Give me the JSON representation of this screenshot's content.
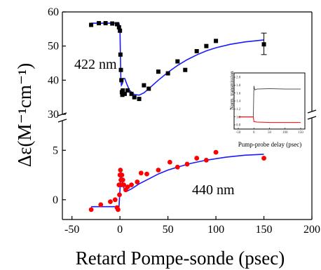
{
  "chart_data": {
    "type": "scatter",
    "title": "",
    "xlabel": "Retard Pompe-sonde (psec)",
    "ylabel": "Δε(M⁻¹cm⁻¹)",
    "xlim": [
      -60,
      200
    ],
    "x_ticks": [
      "-50",
      "0",
      "50",
      "100",
      "150",
      "200"
    ],
    "broken_y_axis": true,
    "upper_panel": {
      "ylim": [
        30,
        60
      ],
      "y_ticks": [
        "30",
        "40",
        "50",
        "60"
      ],
      "annotation": "422 nm",
      "marker": "square",
      "color": "#000000",
      "fit_color": "#1a1aff",
      "points": [
        {
          "x": -30,
          "y": 56.2
        },
        {
          "x": -22,
          "y": 56.7
        },
        {
          "x": -15,
          "y": 56.7
        },
        {
          "x": -8,
          "y": 56.6
        },
        {
          "x": -3,
          "y": 56.4
        },
        {
          "x": -1,
          "y": 55.5
        },
        {
          "x": 0,
          "y": 54.5
        },
        {
          "x": 0.5,
          "y": 47.5
        },
        {
          "x": 1,
          "y": 43.0
        },
        {
          "x": 1.5,
          "y": 40.0
        },
        {
          "x": 2,
          "y": 36.5
        },
        {
          "x": 2.5,
          "y": 35.7
        },
        {
          "x": 3,
          "y": 37.0
        },
        {
          "x": 5,
          "y": 36.0
        },
        {
          "x": 8,
          "y": 37.0
        },
        {
          "x": 12,
          "y": 36.0
        },
        {
          "x": 15,
          "y": 35.0
        },
        {
          "x": 20,
          "y": 34.5
        },
        {
          "x": 25,
          "y": 38.5
        },
        {
          "x": 30,
          "y": 37.5
        },
        {
          "x": 40,
          "y": 42.5
        },
        {
          "x": 50,
          "y": 42.0
        },
        {
          "x": 60,
          "y": 45.5
        },
        {
          "x": 68,
          "y": 43.0
        },
        {
          "x": 80,
          "y": 48.5
        },
        {
          "x": 90,
          "y": 50.0
        },
        {
          "x": 100,
          "y": 51.5
        },
        {
          "x": 150,
          "y": 50.5
        }
      ],
      "error_bar": {
        "x": 150,
        "y": 50.5,
        "low": 47.5,
        "high": 53.8
      },
      "fit": [
        {
          "x": -30,
          "y": 56.7
        },
        {
          "x": -1,
          "y": 56.7
        },
        {
          "x": 0,
          "y": 55.0
        },
        {
          "x": 0.5,
          "y": 47.0
        },
        {
          "x": 1,
          "y": 40.0
        },
        {
          "x": 1.5,
          "y": 38.5
        },
        {
          "x": 2.5,
          "y": 39.0
        },
        {
          "x": 3.5,
          "y": 40.5
        },
        {
          "x": 5,
          "y": 40.5
        },
        {
          "x": 7,
          "y": 39.0
        },
        {
          "x": 10,
          "y": 37.0
        },
        {
          "x": 15,
          "y": 35.8
        },
        {
          "x": 20,
          "y": 35.6
        },
        {
          "x": 25,
          "y": 36.3
        },
        {
          "x": 30,
          "y": 37.5
        },
        {
          "x": 40,
          "y": 40.0
        },
        {
          "x": 50,
          "y": 42.3
        },
        {
          "x": 60,
          "y": 44.3
        },
        {
          "x": 70,
          "y": 46.0
        },
        {
          "x": 80,
          "y": 47.4
        },
        {
          "x": 90,
          "y": 48.6
        },
        {
          "x": 100,
          "y": 49.5
        },
        {
          "x": 115,
          "y": 50.5
        },
        {
          "x": 130,
          "y": 51.2
        },
        {
          "x": 150,
          "y": 51.8
        }
      ]
    },
    "lower_panel": {
      "ylim": [
        -2,
        8
      ],
      "y_ticks": [
        "0",
        "5"
      ],
      "annotation": "440 nm",
      "marker": "circle",
      "color": "#ff0000",
      "fit_color": "#1a1aff",
      "points": [
        {
          "x": -30,
          "y": -1.0
        },
        {
          "x": -20,
          "y": -0.5
        },
        {
          "x": -10,
          "y": -0.2
        },
        {
          "x": -5,
          "y": 0.0
        },
        {
          "x": -3,
          "y": -0.8
        },
        {
          "x": -2,
          "y": -1.0
        },
        {
          "x": -1,
          "y": 1.5
        },
        {
          "x": -0.5,
          "y": 0.5
        },
        {
          "x": 0,
          "y": 2.5
        },
        {
          "x": 0.5,
          "y": 3.0
        },
        {
          "x": 1,
          "y": 2.0
        },
        {
          "x": 1.5,
          "y": 1.5
        },
        {
          "x": 2,
          "y": 2.5
        },
        {
          "x": 3,
          "y": 2.0
        },
        {
          "x": 4,
          "y": 1.5
        },
        {
          "x": 6,
          "y": 1.0
        },
        {
          "x": 8,
          "y": 1.3
        },
        {
          "x": 12,
          "y": 1.5
        },
        {
          "x": 18,
          "y": 1.8
        },
        {
          "x": 22,
          "y": 2.7
        },
        {
          "x": 28,
          "y": 2.6
        },
        {
          "x": 40,
          "y": 3.0
        },
        {
          "x": 52,
          "y": 3.8
        },
        {
          "x": 60,
          "y": 3.3
        },
        {
          "x": 70,
          "y": 3.6
        },
        {
          "x": 80,
          "y": 4.2
        },
        {
          "x": 90,
          "y": 4.0
        },
        {
          "x": 100,
          "y": 4.8
        },
        {
          "x": 150,
          "y": 4.2
        }
      ],
      "fit": [
        {
          "x": -30,
          "y": -0.7
        },
        {
          "x": -1,
          "y": -0.7
        },
        {
          "x": 0,
          "y": 1.0
        },
        {
          "x": 0.5,
          "y": 2.5
        },
        {
          "x": 1,
          "y": 2.8
        },
        {
          "x": 1.5,
          "y": 2.5
        },
        {
          "x": 2.5,
          "y": 1.8
        },
        {
          "x": 4,
          "y": 1.2
        },
        {
          "x": 6,
          "y": 0.9
        },
        {
          "x": 8,
          "y": 0.9
        },
        {
          "x": 12,
          "y": 1.1
        },
        {
          "x": 20,
          "y": 1.6
        },
        {
          "x": 30,
          "y": 2.1
        },
        {
          "x": 40,
          "y": 2.6
        },
        {
          "x": 50,
          "y": 3.0
        },
        {
          "x": 60,
          "y": 3.3
        },
        {
          "x": 75,
          "y": 3.7
        },
        {
          "x": 90,
          "y": 4.0
        },
        {
          "x": 110,
          "y": 4.3
        },
        {
          "x": 130,
          "y": 4.5
        },
        {
          "x": 150,
          "y": 4.6
        }
      ]
    },
    "inset": {
      "xlabel": "Pump-probe delay (psec)",
      "ylabel": "Norm. transmission",
      "xlim": [
        -50,
        150
      ],
      "ylim": [
        0.8,
        2.0
      ],
      "x_ticks": [
        "-50",
        "0",
        "50",
        "100",
        "150"
      ],
      "y_ticks": [
        "0.8",
        "1.0",
        "1.2",
        "1.4",
        "1.6",
        "1.8",
        "2.0"
      ],
      "series": [
        {
          "color": "#555555",
          "values": [
            {
              "x": -50,
              "y": 1.0
            },
            {
              "x": -2,
              "y": 1.0
            },
            {
              "x": 0,
              "y": 1.78
            },
            {
              "x": 3,
              "y": 1.68
            },
            {
              "x": 10,
              "y": 1.7
            },
            {
              "x": 50,
              "y": 1.71
            },
            {
              "x": 100,
              "y": 1.7
            },
            {
              "x": 150,
              "y": 1.7
            }
          ]
        },
        {
          "color": "#ff0000",
          "values": [
            {
              "x": -50,
              "y": 1.0
            },
            {
              "x": -2,
              "y": 1.0
            },
            {
              "x": 0,
              "y": 0.88
            },
            {
              "x": 10,
              "y": 0.87
            },
            {
              "x": 50,
              "y": 0.86
            },
            {
              "x": 100,
              "y": 0.86
            },
            {
              "x": 150,
              "y": 0.86
            }
          ]
        }
      ]
    }
  }
}
